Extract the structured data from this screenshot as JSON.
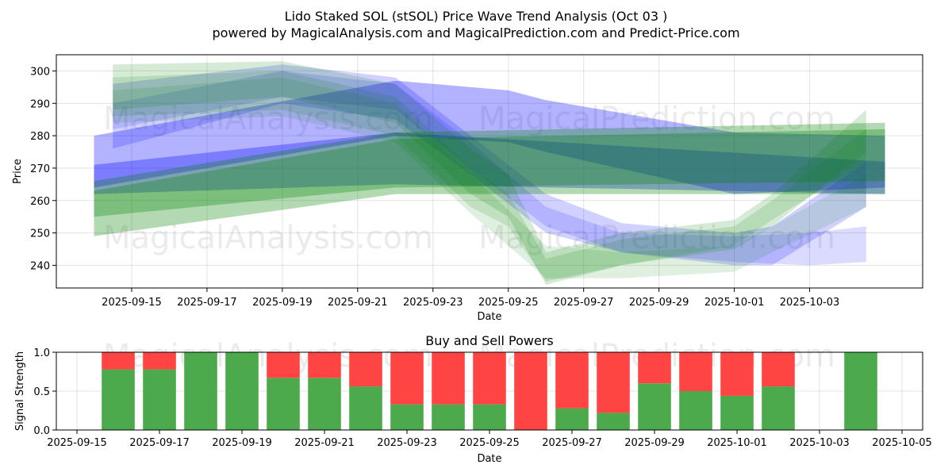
{
  "figure": {
    "title": "Lido Staked SOL (stSOL) Price Wave Trend Analysis (Oct 03 )",
    "subtitle": "powered by MagicalAnalysis.com and MagicalPrediction.com and Predict-Price.com",
    "watermarks": [
      "MagicalAnalysis.com",
      "MagicalPrediction.com"
    ]
  },
  "chart_data": [
    {
      "type": "area",
      "title": "",
      "xlabel": "Date",
      "ylabel": "Price",
      "xlim": [
        "2025-09-13",
        "2025-10-06"
      ],
      "ylim": [
        233,
        305
      ],
      "x_ticks": [
        "2025-09-15",
        "2025-09-17",
        "2025-09-19",
        "2025-09-21",
        "2025-09-23",
        "2025-09-25",
        "2025-09-27",
        "2025-09-29",
        "2025-10-01",
        "2025-10-03"
      ],
      "y_ticks": [
        240,
        250,
        260,
        270,
        280,
        290,
        300
      ],
      "grid": true,
      "colors": {
        "buy": "#008000",
        "sell": "#0000ff",
        "blend": "#3a6a8c"
      },
      "bands": [
        {
          "color": "sell",
          "opacity": 0.3,
          "x": [
            "2025-09-14",
            "2025-09-22",
            "2025-09-25",
            "2025-09-26",
            "2025-10-01",
            "2025-10-05"
          ],
          "upper": [
            280,
            297,
            294,
            291,
            281,
            280
          ],
          "lower": [
            264,
            280,
            278,
            275,
            262,
            264
          ]
        },
        {
          "color": "sell",
          "opacity": 0.3,
          "x": [
            "2025-09-14",
            "2025-09-22",
            "2025-10-05"
          ],
          "upper": [
            271,
            281,
            272
          ],
          "lower": [
            262,
            265,
            262
          ]
        },
        {
          "color": "sell",
          "opacity": 0.18,
          "x": [
            "2025-09-14.5",
            "2025-09-19",
            "2025-09-22",
            "2025-09-24",
            "2025-09-26",
            "2025-09-28",
            "2025-10-01",
            "2025-10-02",
            "2025-10-04.5"
          ],
          "upper": [
            296,
            302,
            298,
            280,
            262,
            253,
            250,
            252,
            272
          ],
          "lower": [
            276,
            290,
            285,
            268,
            250,
            244,
            240,
            240,
            258
          ]
        },
        {
          "color": "sell",
          "opacity": 0.14,
          "x": [
            "2025-09-14.5",
            "2025-09-19",
            "2025-09-22",
            "2025-09-24",
            "2025-09-26",
            "2025-09-28",
            "2025-10-01",
            "2025-10-03",
            "2025-10-04.5"
          ],
          "upper": [
            290,
            300,
            296,
            278,
            258,
            250,
            249,
            250,
            252
          ],
          "lower": [
            282,
            292,
            288,
            270,
            252,
            244,
            241,
            240,
            241
          ]
        },
        {
          "color": "buy",
          "opacity": 0.3,
          "x": [
            "2025-09-14",
            "2025-09-22",
            "2025-10-05"
          ],
          "upper": [
            266,
            281,
            284
          ],
          "lower": [
            249,
            262,
            262
          ]
        },
        {
          "color": "buy",
          "opacity": 0.3,
          "x": [
            "2025-09-14",
            "2025-09-22",
            "2025-10-05"
          ],
          "upper": [
            263,
            279,
            282
          ],
          "lower": [
            255,
            264,
            266
          ]
        },
        {
          "color": "buy",
          "opacity": 0.16,
          "x": [
            "2025-09-14.5",
            "2025-09-19",
            "2025-09-22",
            "2025-09-24",
            "2025-09-25",
            "2025-09-26",
            "2025-09-28",
            "2025-10-01",
            "2025-10-02",
            "2025-10-04.5"
          ],
          "upper": [
            302,
            303,
            296,
            276,
            268,
            244,
            250,
            254,
            262,
            288
          ],
          "lower": [
            288,
            292,
            284,
            262,
            255,
            234,
            240,
            245,
            252,
            275
          ]
        },
        {
          "color": "buy",
          "opacity": 0.14,
          "x": [
            "2025-09-14.5",
            "2025-09-19",
            "2025-09-22",
            "2025-09-24",
            "2025-09-25",
            "2025-09-26",
            "2025-09-28",
            "2025-10-01",
            "2025-10-02",
            "2025-10-04.5"
          ],
          "upper": [
            298,
            300,
            292,
            270,
            262,
            242,
            248,
            252,
            260,
            282
          ],
          "lower": [
            286,
            288,
            280,
            258,
            252,
            235,
            240,
            246,
            254,
            272
          ]
        },
        {
          "color": "buy",
          "opacity": 0.12,
          "x": [
            "2025-09-14.5",
            "2025-09-19",
            "2025-09-22",
            "2025-09-24",
            "2025-09-26",
            "2025-09-28",
            "2025-10-01",
            "2025-10-02",
            "2025-10-04.5"
          ],
          "upper": [
            294,
            298,
            290,
            268,
            246,
            244,
            246,
            252,
            268
          ],
          "lower": [
            284,
            286,
            278,
            256,
            236,
            236,
            238,
            244,
            258
          ]
        }
      ]
    },
    {
      "type": "bar",
      "title": "Buy and Sell Powers",
      "xlabel": "Date",
      "ylabel": "Signal Strength",
      "xlim": [
        "2025-09-14.5",
        "2025-10-05.5"
      ],
      "ylim": [
        0,
        1
      ],
      "x_ticks": [
        "2025-09-15",
        "2025-09-17",
        "2025-09-19",
        "2025-09-21",
        "2025-09-23",
        "2025-09-25",
        "2025-09-27",
        "2025-09-29",
        "2025-10-01",
        "2025-10-03",
        "2025-10-05"
      ],
      "y_ticks": [
        "0.0",
        "0.5",
        "1.0"
      ],
      "grid": true,
      "colors": {
        "buy": "#4caa4c",
        "sell": "#ff4444"
      },
      "series": [
        {
          "name": "buy",
          "x": [
            "2025-09-16",
            "2025-09-17",
            "2025-09-18",
            "2025-09-19",
            "2025-09-20",
            "2025-09-21",
            "2025-09-22",
            "2025-09-23",
            "2025-09-24",
            "2025-09-25",
            "2025-09-26",
            "2025-09-27",
            "2025-09-28",
            "2025-09-29",
            "2025-09-30",
            "2025-10-01",
            "2025-10-02",
            "2025-10-04"
          ],
          "values": [
            0.78,
            0.78,
            1.0,
            1.0,
            0.67,
            0.67,
            0.56,
            0.33,
            0.33,
            0.33,
            0.0,
            0.28,
            0.22,
            0.6,
            0.5,
            0.44,
            0.56,
            1.0
          ]
        },
        {
          "name": "sell",
          "x": [
            "2025-09-16",
            "2025-09-17",
            "2025-09-18",
            "2025-09-19",
            "2025-09-20",
            "2025-09-21",
            "2025-09-22",
            "2025-09-23",
            "2025-09-24",
            "2025-09-25",
            "2025-09-26",
            "2025-09-27",
            "2025-09-28",
            "2025-09-29",
            "2025-09-30",
            "2025-10-01",
            "2025-10-02",
            "2025-10-04"
          ],
          "values": [
            0.22,
            0.22,
            0.0,
            0.0,
            0.33,
            0.33,
            0.44,
            0.67,
            0.67,
            0.67,
            1.0,
            0.72,
            0.78,
            0.4,
            0.5,
            0.56,
            0.44,
            0.0
          ]
        }
      ]
    }
  ]
}
